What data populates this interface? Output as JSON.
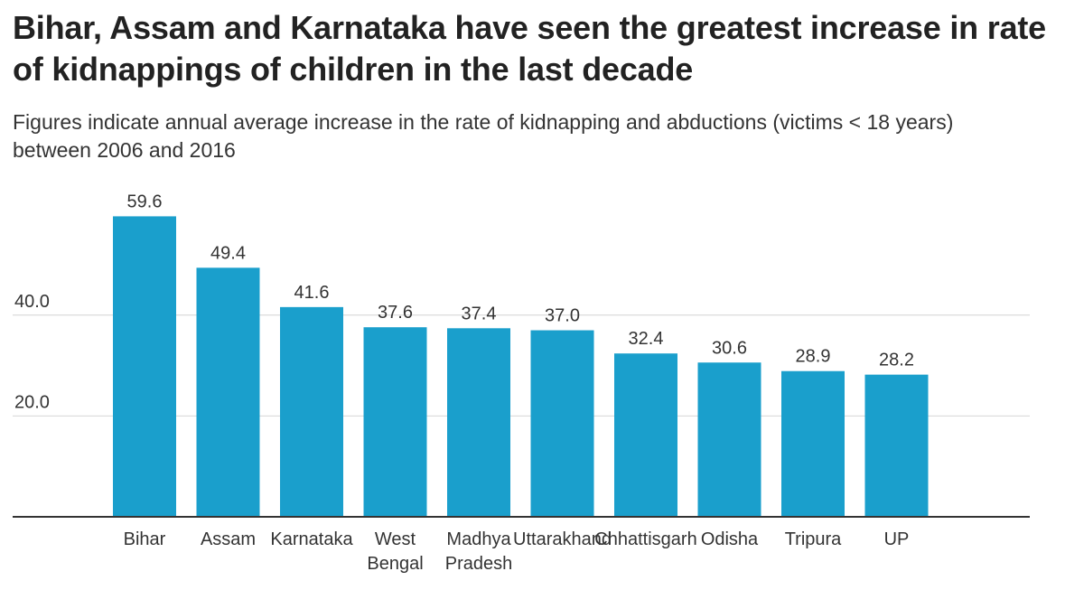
{
  "title": "Bihar, Assam and Karnataka have seen the greatest increase in rate of kidnappings of children in the last decade",
  "subtitle": "Figures indicate annual average increase in the rate of kidnapping and abductions (victims < 18 years) between 2006 and 2016",
  "colors": {
    "bar": "#1a9fcc",
    "gridline": "#d4d4d4",
    "axis": "#333333",
    "text": "#333333"
  },
  "chart_data": {
    "type": "bar",
    "categories": [
      "Bihar",
      "Assam",
      "Karnataka",
      "West Bengal",
      "Madhya Pradesh",
      "Uttarakhand",
      "Chhattisgarh",
      "Odisha",
      "Tripura",
      "UP"
    ],
    "category_lines": [
      [
        "Bihar"
      ],
      [
        "Assam"
      ],
      [
        "Karnataka"
      ],
      [
        "West",
        "Bengal"
      ],
      [
        "Madhya",
        "Pradesh"
      ],
      [
        "Uttarakhand"
      ],
      [
        "Chhattisgarh"
      ],
      [
        "Odisha"
      ],
      [
        "Tripura"
      ],
      [
        "UP"
      ]
    ],
    "values": [
      59.6,
      49.4,
      41.6,
      37.6,
      37.4,
      37.0,
      32.4,
      30.6,
      28.9,
      28.2
    ],
    "value_labels": [
      "59.6",
      "49.4",
      "41.6",
      "37.6",
      "37.4",
      "37.0",
      "32.4",
      "30.6",
      "28.9",
      "28.2"
    ],
    "y_ticks": [
      20,
      40
    ],
    "y_tick_labels": [
      "20.0",
      "40.0"
    ],
    "ylim": [
      0,
      60
    ],
    "grid": true,
    "xlabel": "",
    "ylabel": ""
  }
}
